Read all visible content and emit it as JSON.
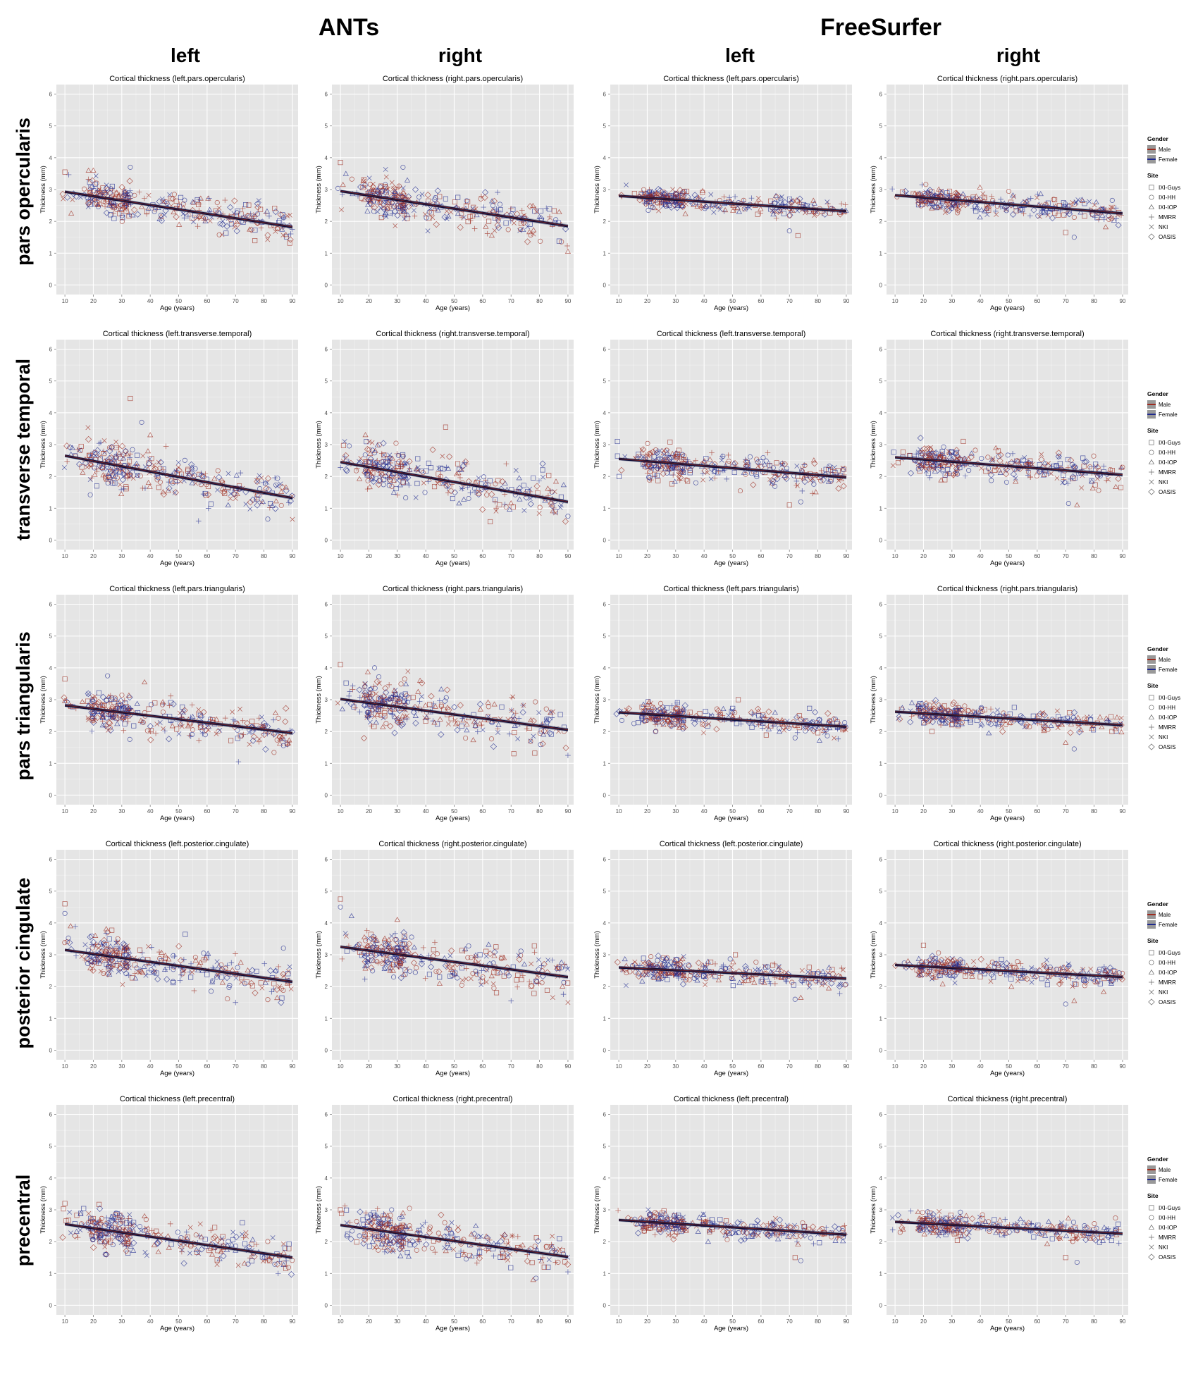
{
  "figure": {
    "method_headers": [
      "ANTs",
      "FreeSurfer"
    ],
    "hemisphere_headers": [
      "left",
      "right",
      "left",
      "right"
    ],
    "row_labels": [
      "pars opercularis",
      "transverse temporal",
      "pars triangularis",
      "posterior cingulate",
      "precentral"
    ]
  },
  "legend": {
    "gender_title": "Gender",
    "gender_items": [
      {
        "label": "Male",
        "color": "#9e2b1f"
      },
      {
        "label": "Female",
        "color": "#1f2a8f"
      }
    ],
    "site_title": "Site",
    "site_items": [
      {
        "label": "IXI-Guys",
        "shape": "square-icon"
      },
      {
        "label": "IXI-HH",
        "shape": "circle-icon"
      },
      {
        "label": "IXI-IOP",
        "shape": "triangle-icon"
      },
      {
        "label": "MMRR",
        "shape": "plus-icon"
      },
      {
        "label": "NKI",
        "shape": "cross-icon"
      },
      {
        "label": "OASIS",
        "shape": "diamond-icon"
      }
    ]
  },
  "colors": {
    "panel_bg": "#e5e5e5",
    "grid": "#ffffff",
    "male": "#9e2b1f",
    "female": "#1f2a8f",
    "fit_line": "#0d0f3a"
  },
  "chart_data": [
    {
      "type": "scatter",
      "method": "ANTs",
      "hemisphere": "left",
      "region": "pars opercularis",
      "title": "Cortical thickness (left.pars.opercularis)",
      "xlabel": "Age (years)",
      "ylabel": "Thickness (mm)",
      "xlim": [
        7,
        92
      ],
      "ylim": [
        -0.3,
        6.3
      ],
      "x_ticks": [
        10,
        20,
        30,
        40,
        50,
        60,
        70,
        80,
        90
      ],
      "y_ticks": [
        0,
        1,
        2,
        3,
        4,
        5,
        6
      ],
      "fit": {
        "x": [
          10,
          90
        ],
        "y": [
          2.93,
          1.82
        ]
      },
      "spread": 0.28,
      "outliers": [
        [
          10,
          3.55
        ],
        [
          33,
          3.7
        ],
        [
          20,
          3.6
        ]
      ]
    },
    {
      "type": "scatter",
      "method": "ANTs",
      "hemisphere": "right",
      "region": "pars opercularis",
      "title": "Cortical thickness (right.pars.opercularis)",
      "xlabel": "Age (years)",
      "ylabel": "Thickness (mm)",
      "xlim": [
        7,
        92
      ],
      "ylim": [
        -0.3,
        6.3
      ],
      "x_ticks": [
        10,
        20,
        30,
        40,
        50,
        60,
        70,
        80,
        90
      ],
      "y_ticks": [
        0,
        1,
        2,
        3,
        4,
        5,
        6
      ],
      "fit": {
        "x": [
          10,
          90
        ],
        "y": [
          2.95,
          1.85
        ]
      },
      "spread": 0.3,
      "outliers": [
        [
          10,
          3.85
        ],
        [
          32,
          3.7
        ],
        [
          90,
          1.05
        ]
      ]
    },
    {
      "type": "scatter",
      "method": "FreeSurfer",
      "hemisphere": "left",
      "region": "pars opercularis",
      "title": "Cortical thickness (left.pars.opercularis)",
      "xlabel": "Age (years)",
      "ylabel": "Thickness (mm)",
      "xlim": [
        7,
        92
      ],
      "ylim": [
        -0.3,
        6.3
      ],
      "x_ticks": [
        10,
        20,
        30,
        40,
        50,
        60,
        70,
        80,
        90
      ],
      "y_ticks": [
        0,
        1,
        2,
        3,
        4,
        5,
        6
      ],
      "fit": {
        "x": [
          10,
          90
        ],
        "y": [
          2.8,
          2.32
        ]
      },
      "spread": 0.16,
      "outliers": [
        [
          73,
          1.55
        ],
        [
          70,
          1.7
        ]
      ]
    },
    {
      "type": "scatter",
      "method": "FreeSurfer",
      "hemisphere": "right",
      "region": "pars opercularis",
      "title": "Cortical thickness (right.pars.opercularis)",
      "xlabel": "Age (years)",
      "ylabel": "Thickness (mm)",
      "xlim": [
        7,
        92
      ],
      "ylim": [
        -0.3,
        6.3
      ],
      "x_ticks": [
        10,
        20,
        30,
        40,
        50,
        60,
        70,
        80,
        90
      ],
      "y_ticks": [
        0,
        1,
        2,
        3,
        4,
        5,
        6
      ],
      "fit": {
        "x": [
          10,
          90
        ],
        "y": [
          2.82,
          2.25
        ]
      },
      "spread": 0.16,
      "outliers": [
        [
          70,
          1.65
        ],
        [
          73,
          1.5
        ]
      ]
    },
    {
      "type": "scatter",
      "method": "ANTs",
      "hemisphere": "left",
      "region": "transverse temporal",
      "title": "Cortical thickness (left.transverse.temporal)",
      "xlabel": "Age (years)",
      "ylabel": "Thickness (mm)",
      "xlim": [
        7,
        92
      ],
      "ylim": [
        -0.3,
        6.3
      ],
      "x_ticks": [
        10,
        20,
        30,
        40,
        50,
        60,
        70,
        80,
        90
      ],
      "y_ticks": [
        0,
        1,
        2,
        3,
        4,
        5,
        6
      ],
      "fit": {
        "x": [
          10,
          90
        ],
        "y": [
          2.65,
          1.32
        ]
      },
      "spread": 0.35,
      "outliers": [
        [
          33,
          4.45
        ],
        [
          37,
          3.7
        ],
        [
          40,
          3.3
        ],
        [
          57,
          0.6
        ],
        [
          90,
          0.65
        ]
      ]
    },
    {
      "type": "scatter",
      "method": "ANTs",
      "hemisphere": "right",
      "region": "transverse temporal",
      "title": "Cortical thickness (right.transverse.temporal)",
      "xlabel": "Age (years)",
      "ylabel": "Thickness (mm)",
      "xlim": [
        7,
        92
      ],
      "ylim": [
        -0.3,
        6.3
      ],
      "x_ticks": [
        10,
        20,
        30,
        40,
        50,
        60,
        70,
        80,
        90
      ],
      "y_ticks": [
        0,
        1,
        2,
        3,
        4,
        5,
        6
      ],
      "fit": {
        "x": [
          10,
          90
        ],
        "y": [
          2.45,
          1.2
        ]
      },
      "spread": 0.35,
      "outliers": [
        [
          47,
          3.55
        ],
        [
          90,
          0.75
        ]
      ]
    },
    {
      "type": "scatter",
      "method": "FreeSurfer",
      "hemisphere": "left",
      "region": "transverse temporal",
      "title": "Cortical thickness (left.transverse.temporal)",
      "xlabel": "Age (years)",
      "ylabel": "Thickness (mm)",
      "xlim": [
        7,
        92
      ],
      "ylim": [
        -0.3,
        6.3
      ],
      "x_ticks": [
        10,
        20,
        30,
        40,
        50,
        60,
        70,
        80,
        90
      ],
      "y_ticks": [
        0,
        1,
        2,
        3,
        4,
        5,
        6
      ],
      "fit": {
        "x": [
          10,
          90
        ],
        "y": [
          2.55,
          1.97
        ]
      },
      "spread": 0.22,
      "outliers": [
        [
          70,
          1.1
        ],
        [
          74,
          1.2
        ]
      ]
    },
    {
      "type": "scatter",
      "method": "FreeSurfer",
      "hemisphere": "right",
      "region": "transverse temporal",
      "title": "Cortical thickness (right.transverse.temporal)",
      "xlabel": "Age (years)",
      "ylabel": "Thickness (mm)",
      "xlim": [
        7,
        92
      ],
      "ylim": [
        -0.3,
        6.3
      ],
      "x_ticks": [
        10,
        20,
        30,
        40,
        50,
        60,
        70,
        80,
        90
      ],
      "y_ticks": [
        0,
        1,
        2,
        3,
        4,
        5,
        6
      ],
      "fit": {
        "x": [
          10,
          90
        ],
        "y": [
          2.6,
          2.05
        ]
      },
      "spread": 0.22,
      "outliers": [
        [
          34,
          3.1
        ],
        [
          71,
          1.15
        ],
        [
          74,
          1.1
        ]
      ]
    },
    {
      "type": "scatter",
      "method": "ANTs",
      "hemisphere": "left",
      "region": "pars triangularis",
      "title": "Cortical thickness (left.pars.triangularis)",
      "xlabel": "Age (years)",
      "ylabel": "Thickness (mm)",
      "xlim": [
        7,
        92
      ],
      "ylim": [
        -0.3,
        6.3
      ],
      "x_ticks": [
        10,
        20,
        30,
        40,
        50,
        60,
        70,
        80,
        90
      ],
      "y_ticks": [
        0,
        1,
        2,
        3,
        4,
        5,
        6
      ],
      "fit": {
        "x": [
          10,
          90
        ],
        "y": [
          2.82,
          1.95
        ]
      },
      "spread": 0.3,
      "outliers": [
        [
          10,
          3.65
        ],
        [
          25,
          3.75
        ],
        [
          38,
          3.55
        ],
        [
          71,
          1.05
        ]
      ]
    },
    {
      "type": "scatter",
      "method": "ANTs",
      "hemisphere": "right",
      "region": "pars triangularis",
      "title": "Cortical thickness (right.pars.triangularis)",
      "xlabel": "Age (years)",
      "ylabel": "Thickness (mm)",
      "xlim": [
        7,
        92
      ],
      "ylim": [
        -0.3,
        6.3
      ],
      "x_ticks": [
        10,
        20,
        30,
        40,
        50,
        60,
        70,
        80,
        90
      ],
      "y_ticks": [
        0,
        1,
        2,
        3,
        4,
        5,
        6
      ],
      "fit": {
        "x": [
          10,
          90
        ],
        "y": [
          3.02,
          2.05
        ]
      },
      "spread": 0.35,
      "outliers": [
        [
          10,
          4.1
        ],
        [
          22,
          4.0
        ],
        [
          38,
          3.6
        ],
        [
          90,
          1.25
        ]
      ]
    },
    {
      "type": "scatter",
      "method": "FreeSurfer",
      "hemisphere": "left",
      "region": "pars triangularis",
      "title": "Cortical thickness (left.pars.triangularis)",
      "xlabel": "Age (years)",
      "ylabel": "Thickness (mm)",
      "xlim": [
        7,
        92
      ],
      "ylim": [
        -0.3,
        6.3
      ],
      "x_ticks": [
        10,
        20,
        30,
        40,
        50,
        60,
        70,
        80,
        90
      ],
      "y_ticks": [
        0,
        1,
        2,
        3,
        4,
        5,
        6
      ],
      "fit": {
        "x": [
          10,
          90
        ],
        "y": [
          2.6,
          2.15
        ]
      },
      "spread": 0.17,
      "outliers": [
        [
          52,
          3.0
        ],
        [
          72,
          1.8
        ]
      ]
    },
    {
      "type": "scatter",
      "method": "FreeSurfer",
      "hemisphere": "right",
      "region": "pars triangularis",
      "title": "Cortical thickness (right.pars.triangularis)",
      "xlabel": "Age (years)",
      "ylabel": "Thickness (mm)",
      "xlim": [
        7,
        92
      ],
      "ylim": [
        -0.3,
        6.3
      ],
      "x_ticks": [
        10,
        20,
        30,
        40,
        50,
        60,
        70,
        80,
        90
      ],
      "y_ticks": [
        0,
        1,
        2,
        3,
        4,
        5,
        6
      ],
      "fit": {
        "x": [
          10,
          90
        ],
        "y": [
          2.62,
          2.2
        ]
      },
      "spread": 0.17,
      "outliers": [
        [
          23,
          2.0
        ],
        [
          73,
          1.45
        ],
        [
          70,
          1.65
        ]
      ]
    },
    {
      "type": "scatter",
      "method": "ANTs",
      "hemisphere": "left",
      "region": "posterior cingulate",
      "title": "Cortical thickness (left.posterior.cingulate)",
      "xlabel": "Age (years)",
      "ylabel": "Thickness (mm)",
      "xlim": [
        7,
        92
      ],
      "ylim": [
        -0.3,
        6.3
      ],
      "x_ticks": [
        10,
        20,
        30,
        40,
        50,
        60,
        70,
        80,
        90
      ],
      "y_ticks": [
        0,
        1,
        2,
        3,
        4,
        5,
        6
      ],
      "fit": {
        "x": [
          10,
          90
        ],
        "y": [
          3.15,
          2.15
        ]
      },
      "spread": 0.32,
      "outliers": [
        [
          10,
          4.6
        ],
        [
          10,
          4.3
        ],
        [
          12,
          3.9
        ],
        [
          70,
          1.5
        ]
      ]
    },
    {
      "type": "scatter",
      "method": "ANTs",
      "hemisphere": "right",
      "region": "posterior cingulate",
      "title": "Cortical thickness (right.posterior.cingulate)",
      "xlabel": "Age (years)",
      "ylabel": "Thickness (mm)",
      "xlim": [
        7,
        92
      ],
      "ylim": [
        -0.3,
        6.3
      ],
      "x_ticks": [
        10,
        20,
        30,
        40,
        50,
        60,
        70,
        80,
        90
      ],
      "y_ticks": [
        0,
        1,
        2,
        3,
        4,
        5,
        6
      ],
      "fit": {
        "x": [
          10,
          90
        ],
        "y": [
          3.25,
          2.3
        ]
      },
      "spread": 0.32,
      "outliers": [
        [
          10,
          4.75
        ],
        [
          10,
          4.5
        ],
        [
          30,
          4.1
        ],
        [
          70,
          1.55
        ],
        [
          90,
          1.5
        ]
      ]
    },
    {
      "type": "scatter",
      "method": "FreeSurfer",
      "hemisphere": "left",
      "region": "posterior cingulate",
      "title": "Cortical thickness (left.posterior.cingulate)",
      "xlabel": "Age (years)",
      "ylabel": "Thickness (mm)",
      "xlim": [
        7,
        92
      ],
      "ylim": [
        -0.3,
        6.3
      ],
      "x_ticks": [
        10,
        20,
        30,
        40,
        50,
        60,
        70,
        80,
        90
      ],
      "y_ticks": [
        0,
        1,
        2,
        3,
        4,
        5,
        6
      ],
      "fit": {
        "x": [
          10,
          90
        ],
        "y": [
          2.6,
          2.25
        ]
      },
      "spread": 0.17,
      "outliers": [
        [
          51,
          3.0
        ],
        [
          72,
          1.6
        ],
        [
          74,
          1.65
        ]
      ]
    },
    {
      "type": "scatter",
      "method": "FreeSurfer",
      "hemisphere": "right",
      "region": "posterior cingulate",
      "title": "Cortical thickness (right.posterior.cingulate)",
      "xlabel": "Age (years)",
      "ylabel": "Thickness (mm)",
      "xlim": [
        7,
        92
      ],
      "ylim": [
        -0.3,
        6.3
      ],
      "x_ticks": [
        10,
        20,
        30,
        40,
        50,
        60,
        70,
        80,
        90
      ],
      "y_ticks": [
        0,
        1,
        2,
        3,
        4,
        5,
        6
      ],
      "fit": {
        "x": [
          10,
          90
        ],
        "y": [
          2.68,
          2.3
        ]
      },
      "spread": 0.17,
      "outliers": [
        [
          20,
          3.3
        ],
        [
          70,
          1.45
        ],
        [
          73,
          1.55
        ]
      ]
    },
    {
      "type": "scatter",
      "method": "ANTs",
      "hemisphere": "left",
      "region": "precentral",
      "title": "Cortical thickness (left.precentral)",
      "xlabel": "Age (years)",
      "ylabel": "Thickness (mm)",
      "xlim": [
        7,
        92
      ],
      "ylim": [
        -0.3,
        6.3
      ],
      "x_ticks": [
        10,
        20,
        30,
        40,
        50,
        60,
        70,
        80,
        90
      ],
      "y_ticks": [
        0,
        1,
        2,
        3,
        4,
        5,
        6
      ],
      "fit": {
        "x": [
          10,
          90
        ],
        "y": [
          2.55,
          1.5
        ]
      },
      "spread": 0.28,
      "outliers": [
        [
          10,
          3.2
        ],
        [
          28,
          2.9
        ],
        [
          38,
          2.8
        ],
        [
          85,
          1.0
        ]
      ]
    },
    {
      "type": "scatter",
      "method": "ANTs",
      "hemisphere": "right",
      "region": "precentral",
      "title": "Cortical thickness (right.precentral)",
      "xlabel": "Age (years)",
      "ylabel": "Thickness (mm)",
      "xlim": [
        7,
        92
      ],
      "ylim": [
        -0.3,
        6.3
      ],
      "x_ticks": [
        10,
        20,
        30,
        40,
        50,
        60,
        70,
        80,
        90
      ],
      "y_ticks": [
        0,
        1,
        2,
        3,
        4,
        5,
        6
      ],
      "fit": {
        "x": [
          10,
          90
        ],
        "y": [
          2.52,
          1.52
        ]
      },
      "spread": 0.3,
      "outliers": [
        [
          10,
          3.0
        ],
        [
          28,
          3.0
        ],
        [
          32,
          2.9
        ],
        [
          90,
          1.05
        ]
      ]
    },
    {
      "type": "scatter",
      "method": "FreeSurfer",
      "hemisphere": "left",
      "region": "precentral",
      "title": "Cortical thickness (left.precentral)",
      "xlabel": "Age (years)",
      "ylabel": "Thickness (mm)",
      "xlim": [
        7,
        92
      ],
      "ylim": [
        -0.3,
        6.3
      ],
      "x_ticks": [
        10,
        20,
        30,
        40,
        50,
        60,
        70,
        80,
        90
      ],
      "y_ticks": [
        0,
        1,
        2,
        3,
        4,
        5,
        6
      ],
      "fit": {
        "x": [
          10,
          90
        ],
        "y": [
          2.68,
          2.22
        ]
      },
      "spread": 0.16,
      "outliers": [
        [
          72,
          1.5
        ],
        [
          74,
          1.4
        ]
      ]
    },
    {
      "type": "scatter",
      "method": "FreeSurfer",
      "hemisphere": "right",
      "region": "precentral",
      "title": "Cortical thickness (right.precentral)",
      "xlabel": "Age (years)",
      "ylabel": "Thickness (mm)",
      "xlim": [
        7,
        92
      ],
      "ylim": [
        -0.3,
        6.3
      ],
      "x_ticks": [
        10,
        20,
        30,
        40,
        50,
        60,
        70,
        80,
        90
      ],
      "y_ticks": [
        0,
        1,
        2,
        3,
        4,
        5,
        6
      ],
      "fit": {
        "x": [
          10,
          90
        ],
        "y": [
          2.62,
          2.25
        ]
      },
      "spread": 0.16,
      "outliers": [
        [
          70,
          1.5
        ],
        [
          74,
          1.35
        ]
      ]
    }
  ]
}
